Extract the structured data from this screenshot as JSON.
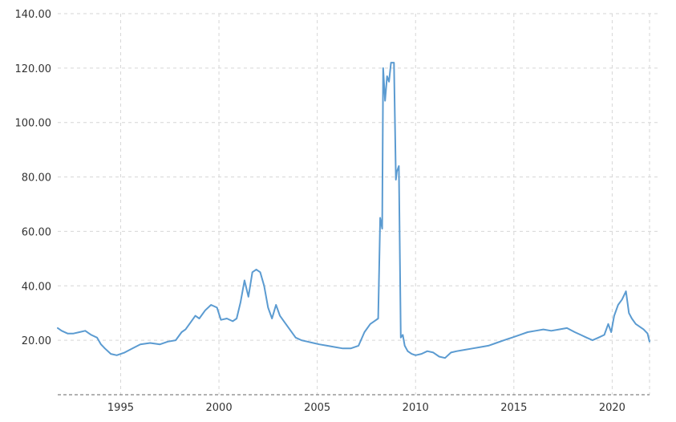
{
  "chart_data": {
    "type": "line",
    "title": "",
    "xlabel": "",
    "ylabel": "",
    "ylim": [
      0,
      140
    ],
    "xlim": [
      1991.8,
      2021.9
    ],
    "grid": true,
    "legend": "none",
    "y_ticks": [
      "20.00",
      "40.00",
      "60.00",
      "80.00",
      "100.00",
      "120.00",
      "140.00"
    ],
    "x_ticks": [
      "1995",
      "2000",
      "2005",
      "2010",
      "2015",
      "2020"
    ],
    "series": [
      {
        "color": "#5b9bd1",
        "x": [
          1991.8,
          1992.0,
          1992.3,
          1992.6,
          1992.9,
          1993.2,
          1993.5,
          1993.8,
          1994.0,
          1994.2,
          1994.5,
          1994.8,
          1995.2,
          1995.6,
          1996.0,
          1996.5,
          1997.0,
          1997.4,
          1997.8,
          1998.1,
          1998.3,
          1998.6,
          1998.8,
          1999.0,
          1999.3,
          1999.6,
          1999.9,
          2000.1,
          2000.4,
          2000.7,
          2000.9,
          2001.1,
          2001.3,
          2001.5,
          2001.7,
          2001.9,
          2002.1,
          2002.3,
          2002.5,
          2002.7,
          2002.9,
          2003.1,
          2003.3,
          2003.6,
          2003.9,
          2004.2,
          2004.5,
          2004.8,
          2005.1,
          2005.5,
          2005.9,
          2006.3,
          2006.7,
          2007.1,
          2007.4,
          2007.7,
          2007.9,
          2008.1,
          2008.2,
          2008.3,
          2008.35,
          2008.45,
          2008.55,
          2008.65,
          2008.75,
          2008.9,
          2009.0,
          2009.05,
          2009.15,
          2009.25,
          2009.35,
          2009.45,
          2009.6,
          2009.8,
          2010.0,
          2010.3,
          2010.6,
          2010.9,
          2011.2,
          2011.5,
          2011.8,
          2012.1,
          2012.5,
          2012.9,
          2013.3,
          2013.7,
          2014.1,
          2014.5,
          2014.9,
          2015.3,
          2015.7,
          2016.1,
          2016.5,
          2016.9,
          2017.3,
          2017.7,
          2018.1,
          2018.4,
          2018.7,
          2019.0,
          2019.3,
          2019.6,
          2019.8,
          2019.95,
          2020.1,
          2020.3,
          2020.5,
          2020.7,
          2020.85,
          2021.0,
          2021.2,
          2021.4,
          2021.6,
          2021.8,
          2021.9
        ],
        "y": [
          24.5,
          23.5,
          22.5,
          22.5,
          23,
          23.5,
          22,
          21,
          18.5,
          17,
          15,
          14.5,
          15.5,
          17,
          18.5,
          19,
          18.5,
          19.5,
          20,
          23,
          24,
          27,
          29,
          28,
          31,
          33,
          32,
          27.5,
          28,
          27,
          28,
          34,
          42,
          36,
          45,
          46,
          45,
          40,
          32,
          28,
          33,
          29,
          27,
          24,
          21,
          20,
          19.5,
          19,
          18.5,
          18,
          17.5,
          17,
          17,
          18,
          23,
          26,
          27,
          28,
          65,
          61,
          120,
          108,
          117,
          115,
          122,
          122,
          79,
          82,
          84,
          21,
          22,
          18,
          16,
          15,
          14.5,
          15,
          16,
          15.5,
          14,
          13.5,
          15.5,
          16,
          16.5,
          17,
          17.5,
          18,
          19,
          20,
          21,
          22,
          23,
          23.5,
          24,
          23.5,
          24,
          24.5,
          23,
          22,
          21,
          20,
          21,
          22,
          26,
          23,
          29,
          33,
          35,
          38,
          30,
          28,
          26,
          25,
          24,
          22.5,
          19.5
        ]
      }
    ]
  }
}
